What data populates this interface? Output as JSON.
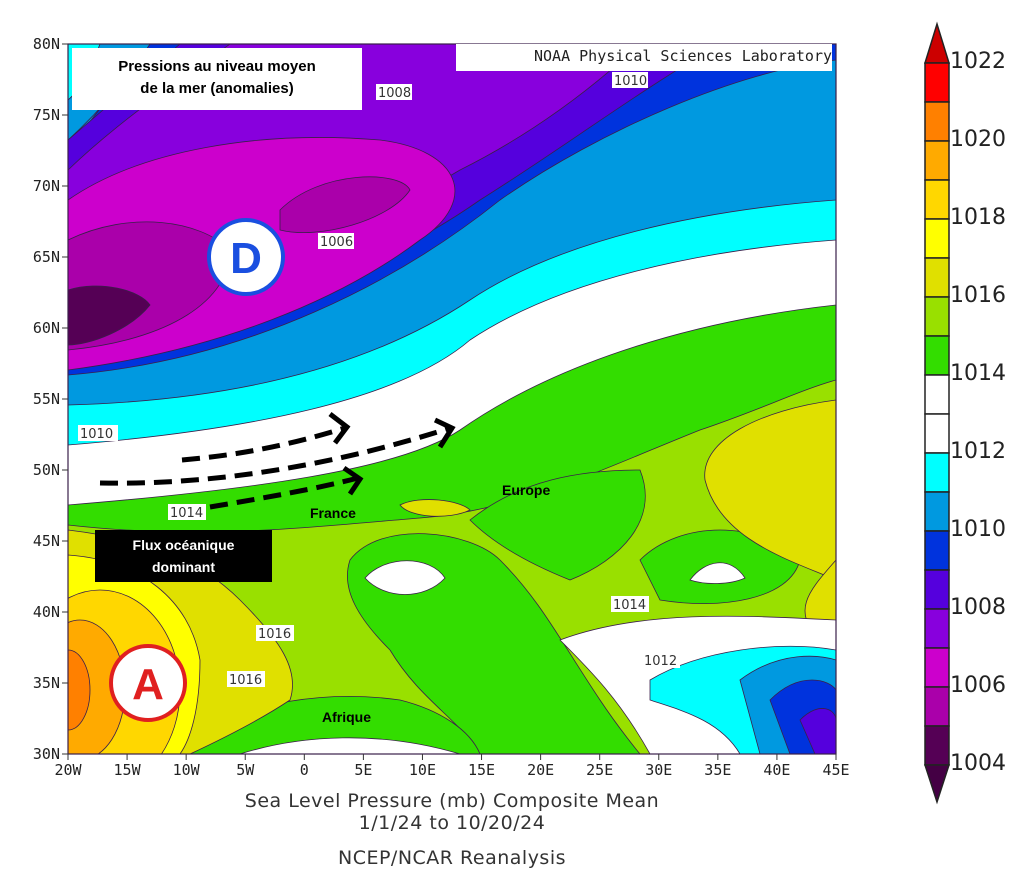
{
  "map": {
    "annotation_title": "Pressions au niveau moyen de la mer (anomalies)",
    "annotation_title_line1": "Pressions au niveau moyen",
    "annotation_title_line2": "de la mer (anomalies)",
    "credit": "NOAA Physical Sciences Laboratory",
    "low_marker": "D",
    "high_marker": "A",
    "flow_box_line1": "Flux océanique",
    "flow_box_line2": "dominant",
    "region_labels": {
      "france": "France",
      "europe": "Europe",
      "africa": "Afrique"
    },
    "contour_labels": [
      "1008",
      "1010",
      "1006",
      "1010",
      "1014",
      "1016",
      "1016",
      "1014",
      "1012"
    ],
    "lat_ticks": [
      "80N",
      "75N",
      "70N",
      "65N",
      "60N",
      "55N",
      "50N",
      "45N",
      "40N",
      "35N",
      "30N"
    ],
    "lon_ticks": [
      "20W",
      "15W",
      "10W",
      "5W",
      "0",
      "5E",
      "10E",
      "15E",
      "20E",
      "25E",
      "30E",
      "35E",
      "40E",
      "45E"
    ],
    "lon_range": [
      -20,
      45
    ],
    "lat_range": [
      30,
      80
    ],
    "caption_line1": "Sea Level Pressure (mb) Composite Mean",
    "caption_line2": "1/1/24  to 10/20/24",
    "caption_line3": "NCEP/NCAR Reanalysis"
  },
  "colorbar": {
    "labels": [
      "1022",
      "1020",
      "1018",
      "1016",
      "1014",
      "1012",
      "1010",
      "1008",
      "1006",
      "1004"
    ],
    "colors_top_to_bottom": [
      "#ff0000",
      "#ff8000",
      "#ffaa00",
      "#ffd700",
      "#ffff00",
      "#e0e000",
      "#99e000",
      "#33dd00",
      "#ffffff",
      "#ffffff",
      "#00ffff",
      "#0099e0",
      "#0033dd",
      "#5500dd",
      "#8800dd",
      "#cc00cc",
      "#aa00aa",
      "#550055"
    ],
    "over_color": "#cc0000",
    "under_color": "#440044"
  }
}
